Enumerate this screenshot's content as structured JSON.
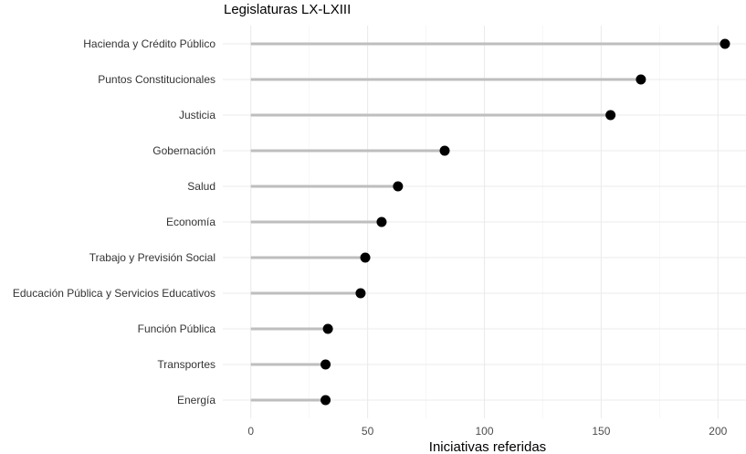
{
  "chart_data": {
    "type": "lollipop",
    "title": "Legislaturas LX-LXIII",
    "xlabel": "Iniciativas referidas",
    "ylabel": "",
    "xlim": [
      -12,
      212
    ],
    "xticks": [
      0,
      50,
      100,
      150,
      200
    ],
    "grid": true,
    "categories": [
      "Hacienda y Crédito Público",
      "Puntos Constitucionales",
      "Justicia",
      "Gobernación",
      "Salud",
      "Economía",
      "Trabajo y Previsión Social",
      "Educación Pública y Servicios Educativos",
      "Función Pública",
      "Transportes",
      "Energía"
    ],
    "values": [
      203,
      167,
      154,
      83,
      63,
      56,
      49,
      47,
      33,
      32,
      32
    ]
  },
  "colors": {
    "stem": "#bebebe",
    "point": "#000000",
    "grid_major": "#ebebeb",
    "grid_minor": "#f5f5f5"
  }
}
